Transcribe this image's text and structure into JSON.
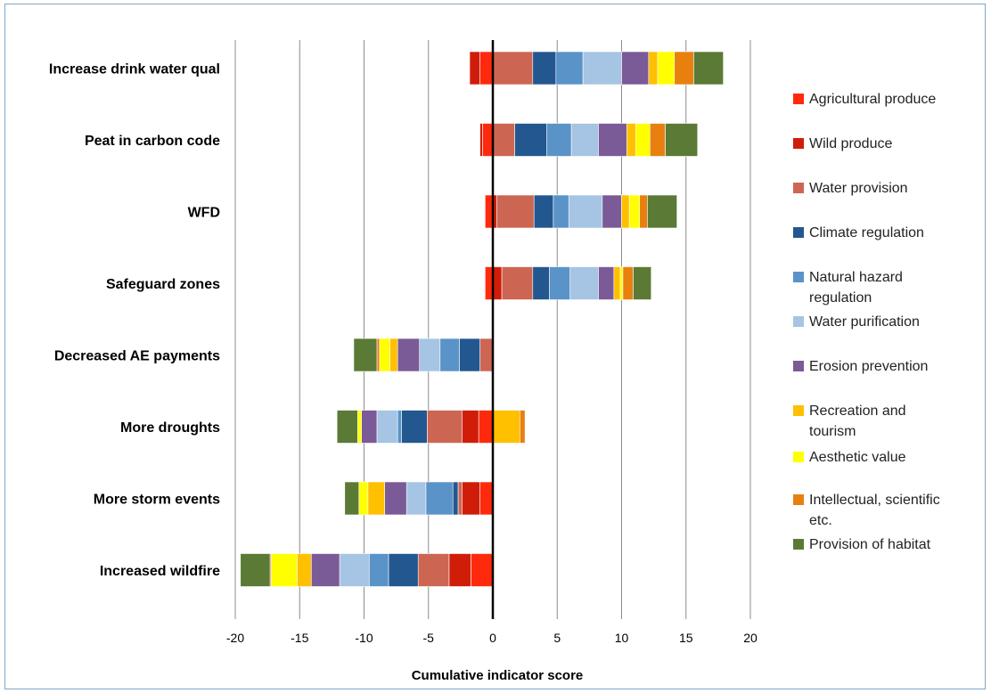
{
  "chart_data": {
    "type": "bar",
    "orientation": "horizontal",
    "stacked": true,
    "xlabel": "Cumulative indicator score",
    "xlim": [
      -20,
      20
    ],
    "xticks": [
      "-20",
      "-15",
      "-10",
      "-5",
      "0",
      "5",
      "10",
      "15",
      "20"
    ],
    "xtick_values": [
      -20,
      -15,
      -10,
      -5,
      0,
      5,
      10,
      15,
      20
    ],
    "grid": "vertical",
    "legend_position": "right",
    "categories": [
      "Increase drink water qual",
      "Peat in carbon code",
      "WFD",
      "Safeguard zones",
      "Decreased AE payments",
      "More droughts",
      "More storm events",
      "Increased wildfire"
    ],
    "series": [
      {
        "name": "Agricultural produce",
        "color": "#ff2a0d",
        "values": [
          -1.0,
          -0.8,
          -0.6,
          -0.6,
          0,
          -1.1,
          -1.0,
          -1.7
        ]
      },
      {
        "name": "Wild produce",
        "color": "#d01d0a",
        "values": [
          -0.8,
          -0.2,
          0.3,
          0.7,
          0,
          -1.3,
          -1.4,
          -1.7
        ]
      },
      {
        "name": "Water provision",
        "color": "#cc6653",
        "values": [
          3.1,
          1.7,
          2.9,
          2.4,
          -1.0,
          -2.7,
          -0.3,
          -2.4
        ]
      },
      {
        "name": "Climate regulation",
        "color": "#23578f",
        "values": [
          1.8,
          2.5,
          1.5,
          1.3,
          -1.6,
          -2.0,
          -0.4,
          -2.3
        ]
      },
      {
        "name": "Natural hazard\nregulation",
        "color": "#5a93c8",
        "values": [
          2.1,
          1.9,
          1.2,
          1.6,
          -1.5,
          -0.3,
          -2.1,
          -1.5
        ]
      },
      {
        "name": "Water purification",
        "color": "#a6c4e3",
        "values": [
          3.0,
          2.1,
          2.6,
          2.2,
          -1.6,
          -1.6,
          -1.5,
          -2.3
        ]
      },
      {
        "name": "Erosion prevention",
        "color": "#7a5a97",
        "values": [
          2.1,
          2.2,
          1.5,
          1.2,
          -1.7,
          -1.2,
          -1.7,
          -2.2
        ]
      },
      {
        "name": "Recreation and\ntourism",
        "color": "#ffc000",
        "values": [
          0.7,
          0.7,
          0.6,
          0.5,
          -0.6,
          2.1,
          -1.3,
          -1.1
        ]
      },
      {
        "name": "Aesthetic value",
        "color": "#ffff00",
        "values": [
          1.3,
          1.1,
          0.8,
          0.2,
          -0.8,
          -0.3,
          -0.7,
          -2.0
        ]
      },
      {
        "name": "Intellectual, scientific\netc.",
        "color": "#e8800f",
        "values": [
          1.5,
          1.2,
          0.6,
          0.8,
          -0.2,
          0.4,
          0,
          -0.1
        ]
      },
      {
        "name": "Provision of habitat",
        "color": "#5a7a35",
        "values": [
          2.3,
          2.5,
          2.3,
          1.4,
          -1.8,
          -1.6,
          -1.1,
          -2.3
        ]
      }
    ]
  }
}
